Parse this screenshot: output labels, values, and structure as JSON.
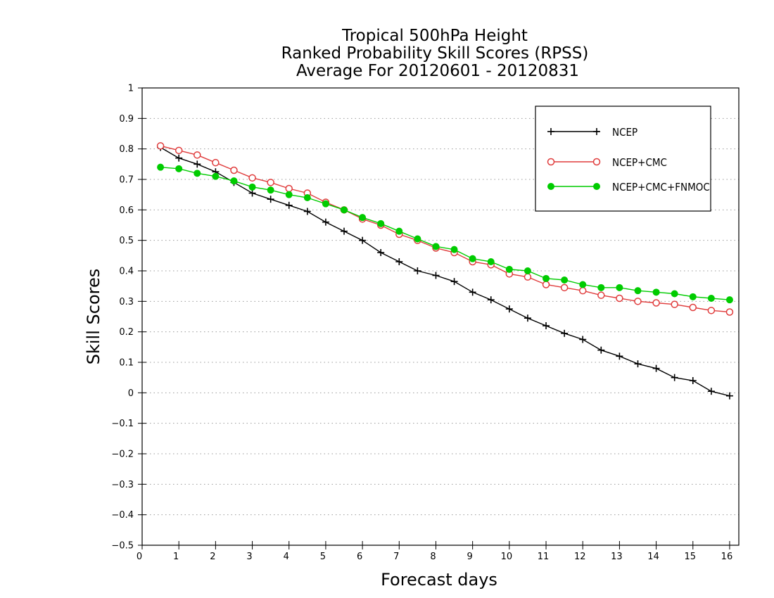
{
  "chart_data": {
    "type": "line",
    "title_lines": [
      "Tropical 500hPa Height",
      "Ranked Probability Skill Scores (RPSS)",
      "Average For 20120601 - 20120831"
    ],
    "xlabel": "Forecast days",
    "ylabel": "Skill Scores",
    "xlim": [
      0,
      16.25
    ],
    "ylim": [
      -0.5,
      1
    ],
    "x_ticks": [
      0,
      1,
      2,
      3,
      4,
      5,
      6,
      7,
      8,
      9,
      10,
      11,
      12,
      13,
      14,
      15,
      16
    ],
    "y_ticks": [
      -0.5,
      -0.4,
      -0.3,
      -0.2,
      -0.1,
      0,
      0.1,
      0.2,
      0.3,
      0.4,
      0.5,
      0.6,
      0.7,
      0.8,
      0.9,
      1
    ],
    "y_tick_labels": [
      "−0.5",
      "−0.4",
      "−0.3",
      "−0.2",
      "−0.1",
      "0",
      "0.1",
      "0.2",
      "0.3",
      "0.4",
      "0.5",
      "0.6",
      "0.7",
      "0.8",
      "0.9",
      "1"
    ],
    "grid": "horizontal dotted",
    "legend_position": "top-right",
    "x": [
      0.5,
      1,
      1.5,
      2,
      2.5,
      3,
      3.5,
      4,
      4.5,
      5,
      5.5,
      6,
      6.5,
      7,
      7.5,
      8,
      8.5,
      9,
      9.5,
      10,
      10.5,
      11,
      11.5,
      12,
      12.5,
      13,
      13.5,
      14,
      14.5,
      15,
      15.5,
      16
    ],
    "series": [
      {
        "name": "NCEP",
        "color": "#000000",
        "marker": "plus",
        "values": [
          0.805,
          0.77,
          0.75,
          0.725,
          0.69,
          0.655,
          0.635,
          0.615,
          0.595,
          0.56,
          0.53,
          0.5,
          0.46,
          0.43,
          0.4,
          0.385,
          0.365,
          0.33,
          0.305,
          0.275,
          0.245,
          0.22,
          0.195,
          0.175,
          0.14,
          0.12,
          0.095,
          0.08,
          0.05,
          0.04,
          0.005,
          -0.01
        ]
      },
      {
        "name": "NCEP+CMC",
        "color": "#e03c3c",
        "marker": "open-circle",
        "values": [
          0.81,
          0.795,
          0.78,
          0.755,
          0.73,
          0.705,
          0.69,
          0.67,
          0.655,
          0.625,
          0.6,
          0.57,
          0.55,
          0.52,
          0.5,
          0.475,
          0.46,
          0.43,
          0.42,
          0.39,
          0.38,
          0.355,
          0.345,
          0.335,
          0.32,
          0.31,
          0.3,
          0.295,
          0.29,
          0.28,
          0.27,
          0.265
        ]
      },
      {
        "name": "NCEP+CMC+FNMOC",
        "color": "#00cc00",
        "marker": "filled-circle",
        "values": [
          0.74,
          0.735,
          0.72,
          0.71,
          0.695,
          0.675,
          0.665,
          0.65,
          0.64,
          0.62,
          0.6,
          0.575,
          0.555,
          0.53,
          0.505,
          0.48,
          0.47,
          0.44,
          0.43,
          0.405,
          0.4,
          0.375,
          0.37,
          0.355,
          0.345,
          0.345,
          0.335,
          0.33,
          0.325,
          0.315,
          0.31,
          0.305
        ]
      }
    ]
  }
}
